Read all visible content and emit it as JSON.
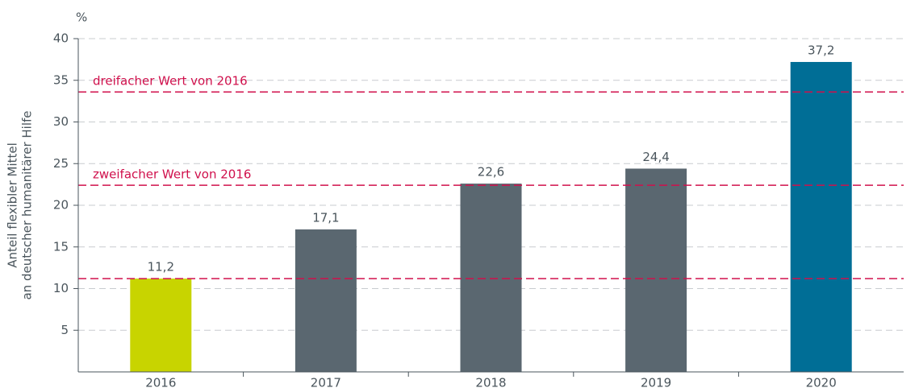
{
  "chart_data": {
    "type": "bar",
    "y_unit": "%",
    "y_label": [
      "Anteil flexibler Mittel",
      "an deutscher humanitärer Hilfe"
    ],
    "categories": [
      "2016",
      "2017",
      "2018",
      "2019",
      "2020"
    ],
    "values": [
      11.2,
      17.1,
      22.6,
      24.4,
      37.2
    ],
    "value_labels": [
      "11,2",
      "17,1",
      "22,6",
      "24,4",
      "37,2"
    ],
    "colors": [
      "#c8d400",
      "#5a6770",
      "#5a6770",
      "#5a6770",
      "#006e96"
    ],
    "ylim": [
      0,
      40
    ],
    "yticks": [
      5,
      10,
      15,
      20,
      25,
      30,
      35,
      40
    ],
    "grid": true,
    "reference_color": "#d0104c",
    "reference_lines": [
      {
        "value": 11.2
      },
      {
        "value": 22.4,
        "label": "zweifacher Wert von 2016"
      },
      {
        "value": 33.6,
        "label": "dreifacher Wert von 2016"
      }
    ]
  }
}
